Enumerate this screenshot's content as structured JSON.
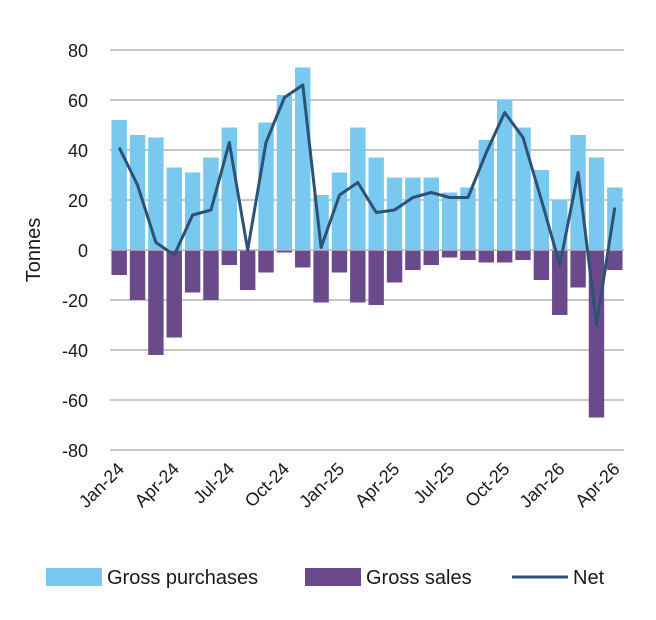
{
  "chart_data": {
    "type": "bar",
    "ylabel": "Tonnes",
    "ylim": [
      -80,
      80
    ],
    "yticks": [
      80,
      60,
      40,
      20,
      0,
      -20,
      -40,
      -60,
      -80
    ],
    "grid": true,
    "legend_position": "bottom",
    "categories": [
      "Jan-24",
      "Feb-24",
      "Mar-24",
      "Apr-24",
      "May-24",
      "Jun-24",
      "Jul-24",
      "Aug-24",
      "Sep-24",
      "Oct-24",
      "Nov-24",
      "Dec-24",
      "Jan-25",
      "Feb-25",
      "Mar-25",
      "Apr-25",
      "May-25",
      "Jun-25",
      "Jul-25",
      "Aug-25",
      "Sep-25",
      "Oct-25",
      "Nov-25",
      "Dec-25",
      "Jan-26",
      "Feb-26",
      "Mar-26",
      "Apr-26"
    ],
    "xtick_labels": [
      "Jan-24",
      "Apr-24",
      "Jul-24",
      "Oct-24",
      "Jan-25",
      "Apr-25",
      "Jul-25",
      "Oct-25",
      "Jan-26",
      "Apr-26"
    ],
    "series": [
      {
        "name": "Gross purchases",
        "kind": "bar",
        "color": "#78c8f0",
        "values": [
          52,
          46,
          45,
          33,
          31,
          37,
          49,
          0,
          51,
          62,
          73,
          22,
          31,
          49,
          37,
          29,
          29,
          29,
          23,
          25,
          44,
          60,
          49,
          32,
          20,
          46,
          37,
          25
        ]
      },
      {
        "name": "Gross sales",
        "kind": "bar",
        "color": "#6b4a8b",
        "values": [
          -10,
          -20,
          -42,
          -35,
          -17,
          -20,
          -6,
          -16,
          -9,
          -1,
          -7,
          -21,
          -9,
          -21,
          -22,
          -13,
          -8,
          -6,
          -3,
          -4,
          -5,
          -5,
          -4,
          -12,
          -26,
          -15,
          -67,
          -8
        ]
      },
      {
        "name": "Net",
        "kind": "line",
        "color": "#2d5275",
        "values": [
          41,
          26,
          3,
          -2,
          14,
          16,
          43,
          0,
          43,
          61,
          66,
          1,
          22,
          27,
          15,
          16,
          21,
          23,
          21,
          21,
          39,
          55,
          45,
          20,
          -6,
          31,
          -30,
          17
        ]
      }
    ]
  }
}
